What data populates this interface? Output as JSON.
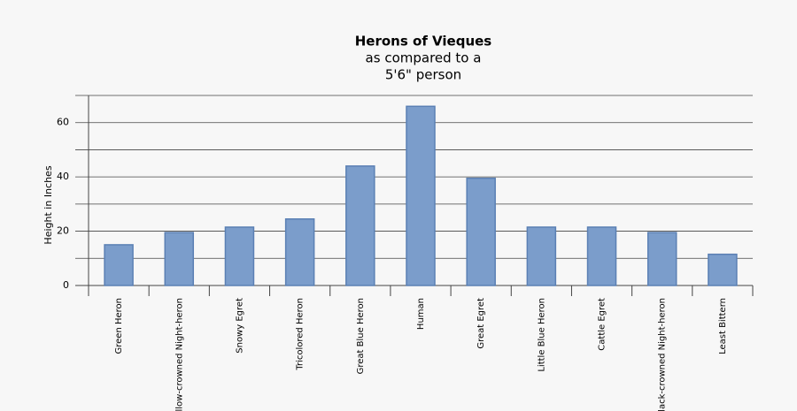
{
  "chart_data": {
    "type": "bar",
    "title": "Herons of Vieques",
    "subtitle": [
      "as compared to a",
      "5'6\" person"
    ],
    "y_label": "Height in Inches",
    "categories": [
      "Green Heron",
      "Yellow-crowned Night-heron",
      "Snowy Egret",
      "Tricolored Heron",
      "Great Blue Heron",
      "Human",
      "Great Egret",
      "Little Blue Heron",
      "Cattle Egret",
      "Black-crowned Night-heron",
      "Least Bittern"
    ],
    "values": [
      15,
      19.5,
      21.5,
      24.5,
      44,
      66,
      39.5,
      21.5,
      21.5,
      19.5,
      11.5
    ],
    "color": "#7b9dcb",
    "ylim": [
      0,
      70
    ],
    "yticks": [
      0,
      20,
      40,
      60
    ],
    "minor_yticks": [
      10,
      30,
      50,
      70
    ],
    "grid": true
  }
}
